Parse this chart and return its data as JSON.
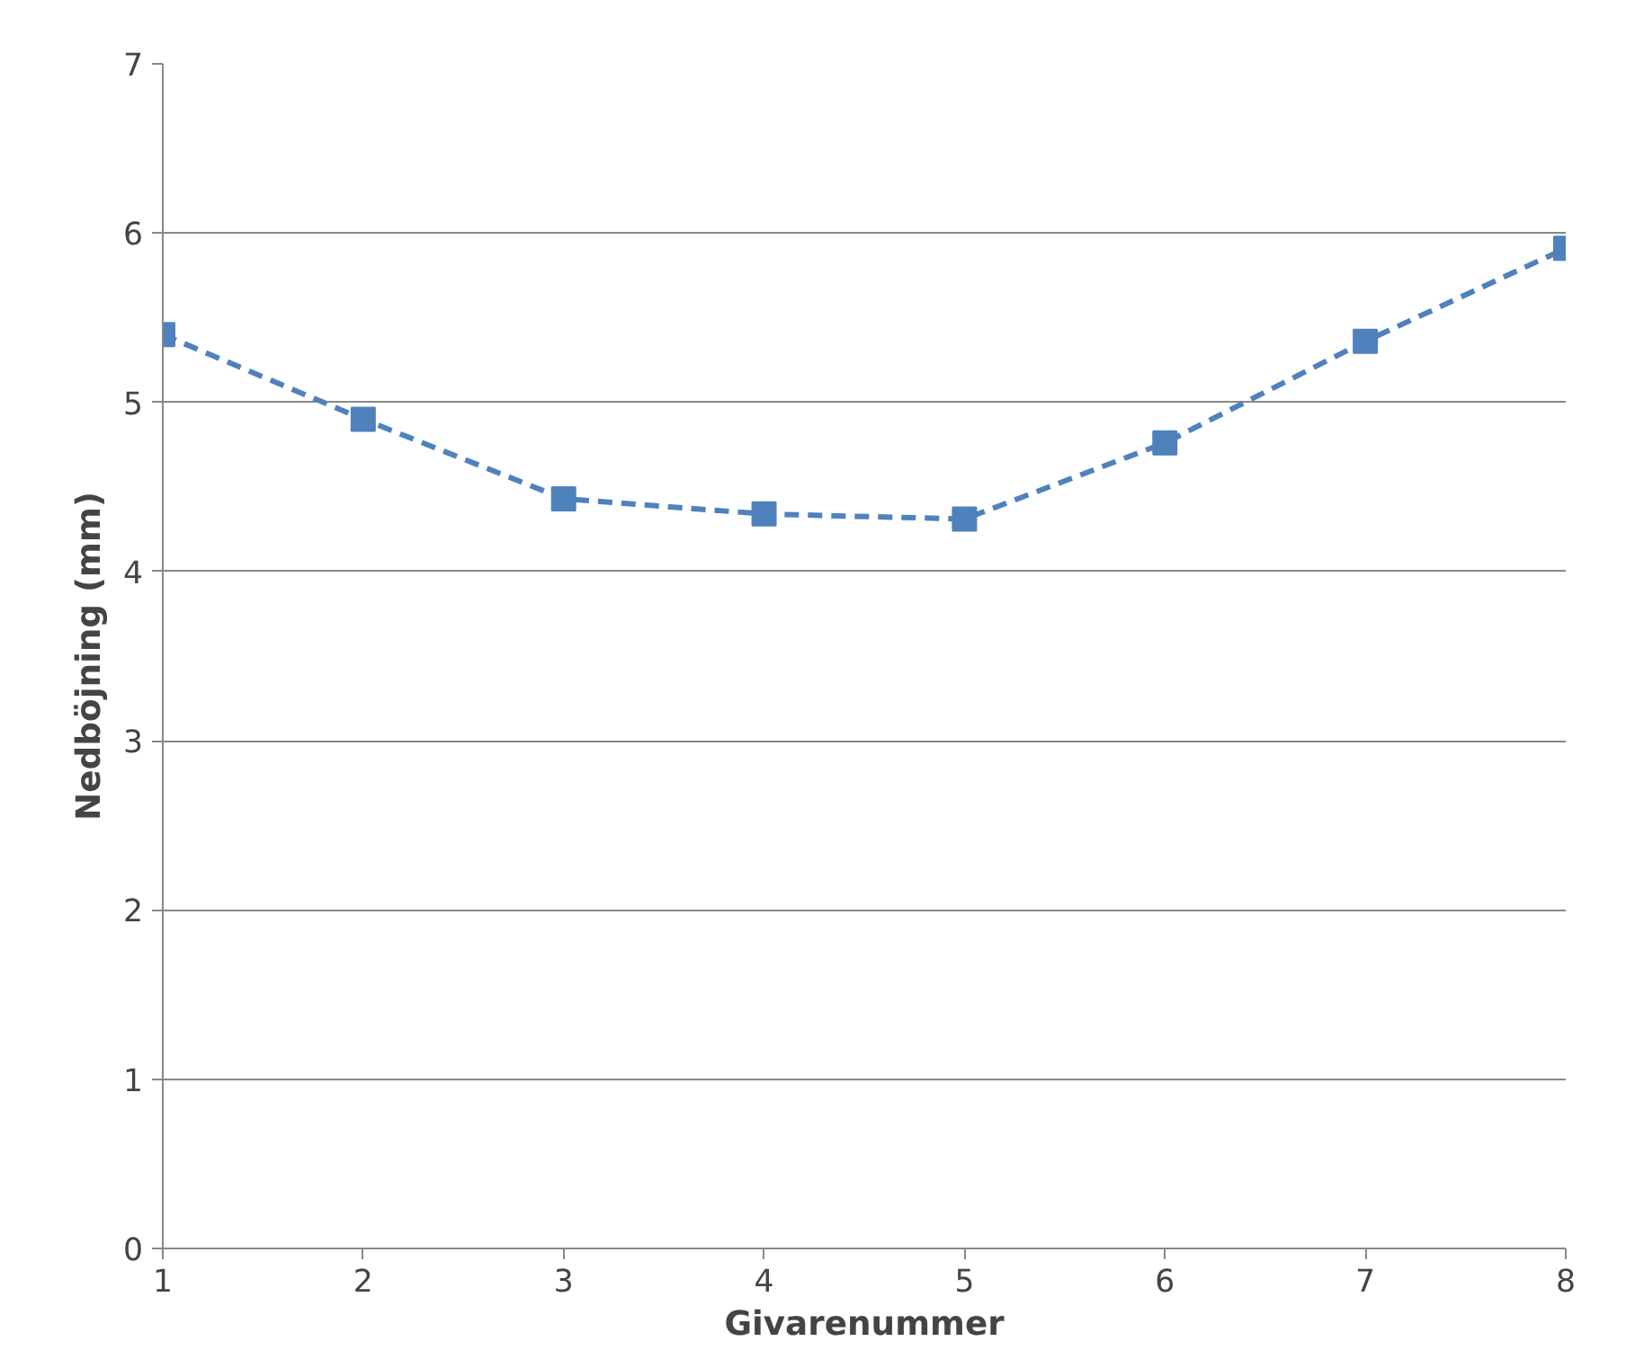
{
  "chart_data": {
    "type": "line",
    "xlabel": "Givarenummer",
    "ylabel": "Nedböjning (mm)",
    "x": [
      1,
      2,
      3,
      4,
      5,
      6,
      7,
      8
    ],
    "series": [
      {
        "color": "#4f81bd",
        "values": [
          5.4,
          4.9,
          4.43,
          4.34,
          4.31,
          4.76,
          5.36,
          5.91
        ]
      }
    ],
    "xlim": [
      1,
      8
    ],
    "xticks": [
      1,
      2,
      3,
      4,
      5,
      6,
      7,
      8
    ],
    "ylim": [
      0,
      7
    ],
    "yticks": [
      0,
      1,
      2,
      3,
      4,
      5,
      6,
      7
    ],
    "grid": "y",
    "marker": "square",
    "line_style": "dashed"
  }
}
